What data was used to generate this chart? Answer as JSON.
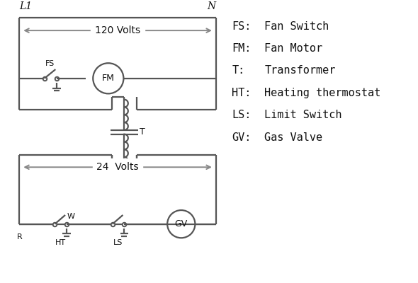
{
  "bg_color": "#ffffff",
  "line_color": "#555555",
  "text_color": "#111111",
  "legend_items": [
    [
      "FS:",
      "Fan Switch"
    ],
    [
      "FM:",
      "Fan Motor"
    ],
    [
      "T:",
      "Transformer"
    ],
    [
      "HT:",
      "Heating thermostat"
    ],
    [
      "LS:",
      "Limit Switch"
    ],
    [
      "GV:",
      "Gas Valve"
    ]
  ]
}
